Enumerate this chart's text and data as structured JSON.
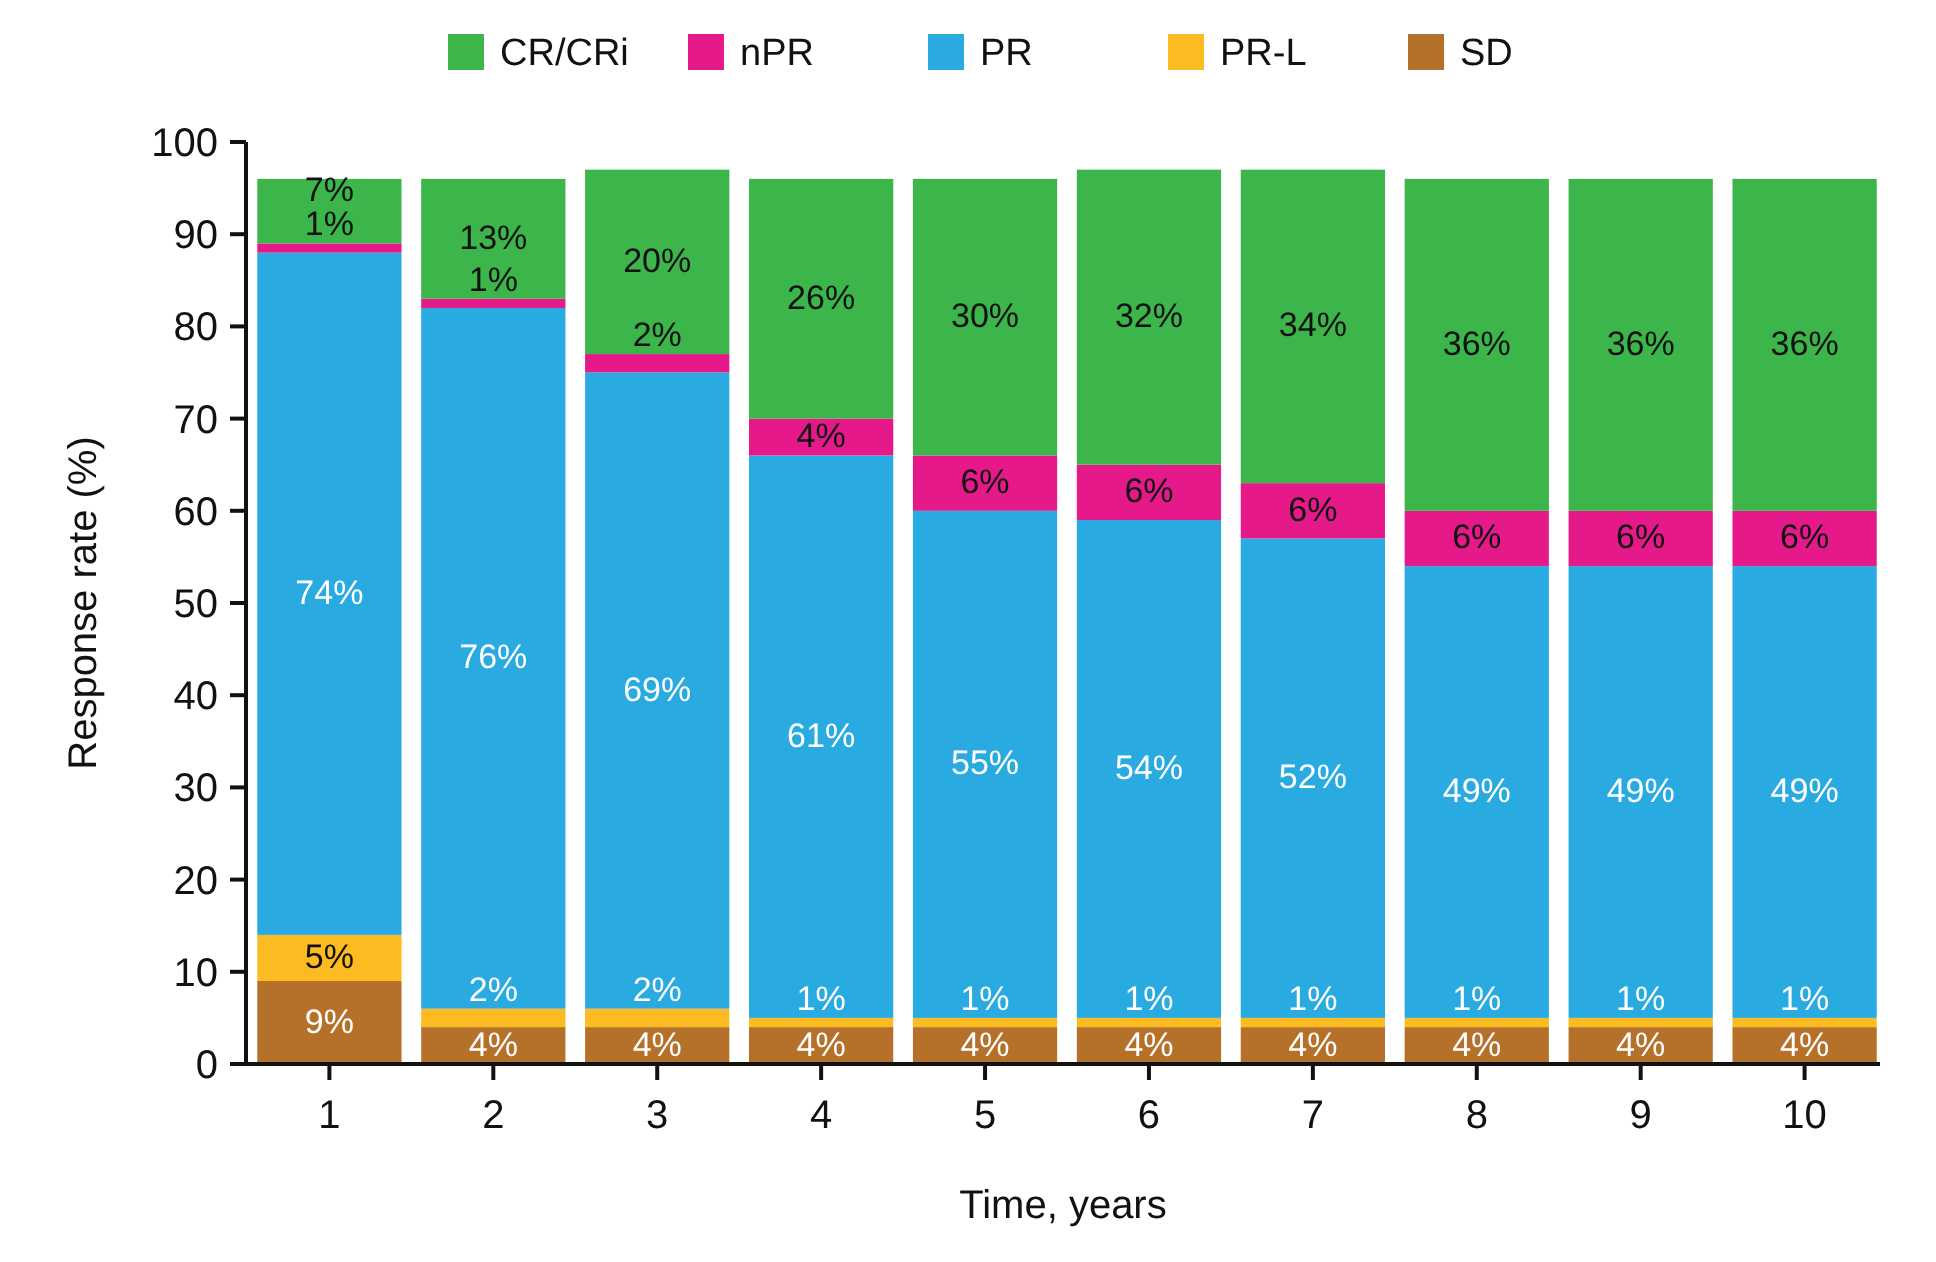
{
  "chart_data": {
    "type": "bar",
    "stacked": true,
    "xlabel": "Time, years",
    "ylabel": "Response rate (%)",
    "categories": [
      "1",
      "2",
      "3",
      "4",
      "5",
      "6",
      "7",
      "8",
      "9",
      "10"
    ],
    "series": [
      {
        "name": "SD",
        "color": "#b5702a",
        "values": [
          9,
          4,
          4,
          4,
          4,
          4,
          4,
          4,
          4,
          4
        ],
        "value_labels": [
          "9%",
          "4%",
          "4%",
          "4%",
          "4%",
          "4%",
          "4%",
          "4%",
          "4%",
          "4%"
        ]
      },
      {
        "name": "PR-L",
        "color": "#fbbb21",
        "values": [
          5,
          2,
          2,
          1,
          1,
          1,
          1,
          1,
          1,
          1
        ],
        "value_labels": [
          "5%",
          "2%",
          "2%",
          "1%",
          "1%",
          "1%",
          "1%",
          "1%",
          "1%",
          "1%"
        ]
      },
      {
        "name": "PR",
        "color": "#29abe2",
        "values": [
          74,
          76,
          69,
          61,
          55,
          54,
          52,
          49,
          49,
          49
        ],
        "value_labels": [
          "74%",
          "76%",
          "69%",
          "61%",
          "55%",
          "54%",
          "52%",
          "49%",
          "49%",
          "49%"
        ]
      },
      {
        "name": "nPR",
        "color": "#e6198a",
        "values": [
          1,
          1,
          2,
          4,
          6,
          6,
          6,
          6,
          6,
          6
        ],
        "value_labels": [
          "1%",
          "1%",
          "2%",
          "4%",
          "6%",
          "6%",
          "6%",
          "6%",
          "6%",
          "6%"
        ]
      },
      {
        "name": "CR/CRi",
        "color": "#3cb54a",
        "values": [
          7,
          13,
          20,
          26,
          30,
          32,
          34,
          36,
          36,
          36
        ],
        "value_labels": [
          "7%",
          "13%",
          "20%",
          "26%",
          "30%",
          "32%",
          "34%",
          "36%",
          "36%",
          "36%"
        ]
      }
    ],
    "ylim": [
      0,
      100
    ],
    "yticks": [
      0,
      10,
      20,
      30,
      40,
      50,
      60,
      70,
      80,
      90,
      100
    ],
    "legend": "top"
  }
}
